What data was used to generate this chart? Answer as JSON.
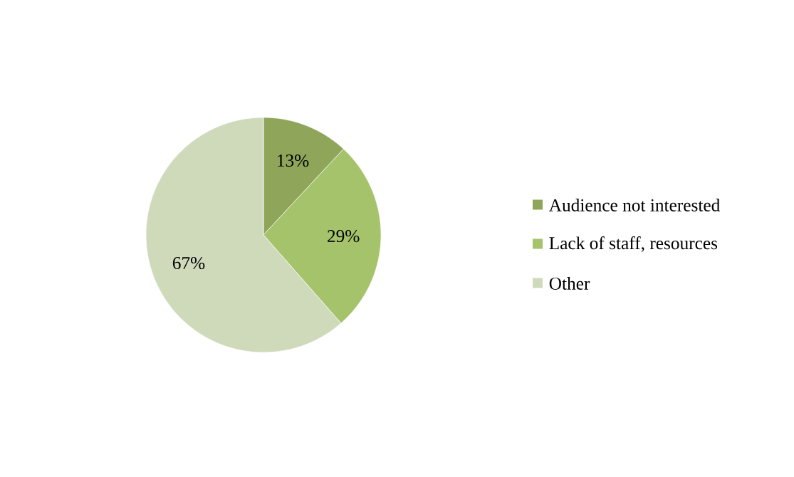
{
  "chart_data": {
    "type": "pie",
    "categories": [
      "Audience not interested",
      "Lack of staff, resources",
      "Other"
    ],
    "values": [
      13,
      29,
      67
    ],
    "colors": [
      "#8fa55a",
      "#a4c36a",
      "#cfdabb"
    ],
    "value_labels": [
      "13%",
      "29%",
      "67%"
    ],
    "legend": "right"
  }
}
